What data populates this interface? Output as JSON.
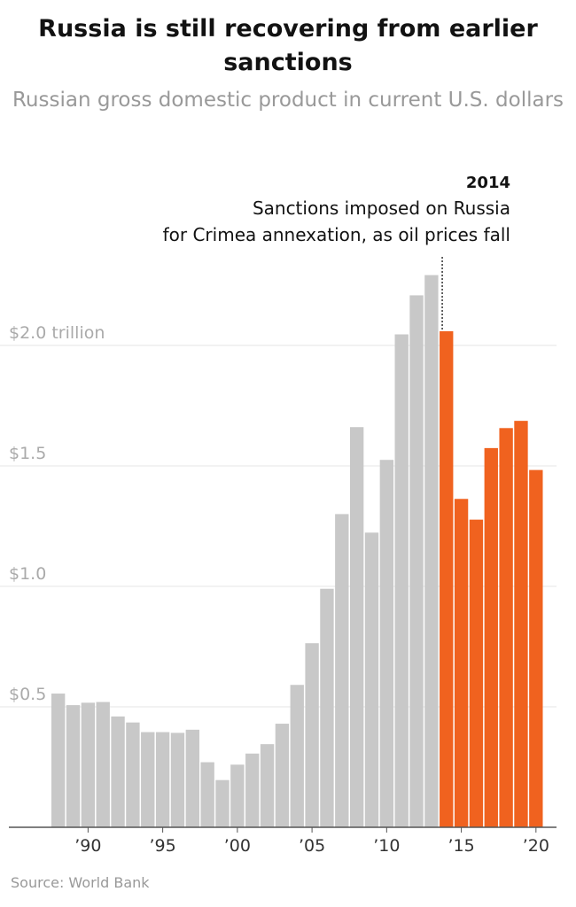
{
  "chart_data": {
    "type": "bar",
    "title": "Russia is still recovering from earlier sanctions",
    "subtitle": "Russian gross domestic product in current U.S. dollars",
    "source": "Source: World Bank",
    "x": [
      1988,
      1989,
      1990,
      1991,
      1992,
      1993,
      1994,
      1995,
      1996,
      1997,
      1998,
      1999,
      2000,
      2001,
      2002,
      2003,
      2004,
      2005,
      2006,
      2007,
      2008,
      2009,
      2010,
      2011,
      2012,
      2013,
      2014,
      2015,
      2016,
      2017,
      2018,
      2019,
      2020
    ],
    "values": [
      0.555,
      0.507,
      0.517,
      0.52,
      0.46,
      0.435,
      0.395,
      0.395,
      0.392,
      0.405,
      0.27,
      0.196,
      0.26,
      0.306,
      0.345,
      0.43,
      0.591,
      0.764,
      0.99,
      1.3,
      1.661,
      1.223,
      1.525,
      2.046,
      2.208,
      2.292,
      2.059,
      1.363,
      1.277,
      1.574,
      1.657,
      1.687,
      1.483
    ],
    "highlight_from": 2014,
    "colors": {
      "before": "#c8c8c8",
      "after": "#f0621f",
      "grid": "#e6e6e6",
      "axis": "#555555"
    },
    "y_ticks": [
      {
        "value": 0.5,
        "label": "$0.5"
      },
      {
        "value": 1.0,
        "label": "$1.0"
      },
      {
        "value": 1.5,
        "label": "$1.5"
      },
      {
        "value": 2.0,
        "label": "$2.0 trillion"
      }
    ],
    "x_ticks": [
      {
        "year": 1990,
        "label": "’90"
      },
      {
        "year": 1995,
        "label": "’95"
      },
      {
        "year": 2000,
        "label": "’00"
      },
      {
        "year": 2005,
        "label": "’05"
      },
      {
        "year": 2010,
        "label": "’10"
      },
      {
        "year": 2015,
        "label": "’15"
      },
      {
        "year": 2020,
        "label": "’20"
      }
    ],
    "ylim": [
      0,
      2.4
    ],
    "grid": true,
    "annotation": {
      "year": 2014,
      "year_label": "2014",
      "lines": [
        "Sanctions imposed on Russia",
        "for Crimea annexation, as oil prices fall"
      ]
    }
  }
}
